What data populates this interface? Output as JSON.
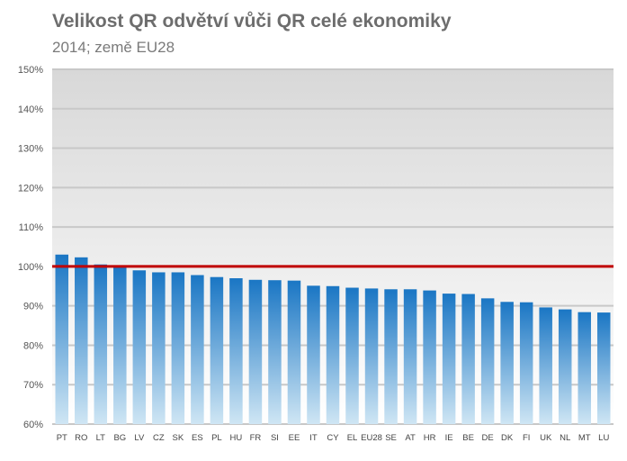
{
  "chart_data": {
    "type": "bar",
    "title": "Velikost QR odvětví vůči QR celé ekonomiky",
    "subtitle": "2014; země EU28",
    "xlabel": "",
    "ylabel": "",
    "categories": [
      "PT",
      "RO",
      "LT",
      "BG",
      "LV",
      "CZ",
      "SK",
      "ES",
      "PL",
      "HU",
      "FR",
      "SI",
      "EE",
      "IT",
      "CY",
      "EL",
      "EU28",
      "SE",
      "AT",
      "HR",
      "IE",
      "BE",
      "DE",
      "DK",
      "FI",
      "UK",
      "NL",
      "MT",
      "LU"
    ],
    "values": [
      103.0,
      102.3,
      100.5,
      100.3,
      99.0,
      98.5,
      98.5,
      97.8,
      97.3,
      97.0,
      96.6,
      96.5,
      96.4,
      95.1,
      95.0,
      94.6,
      94.4,
      94.2,
      94.2,
      93.9,
      93.1,
      93.0,
      91.9,
      91.0,
      90.9,
      89.6,
      89.1,
      88.4,
      88.3
    ],
    "ylim": [
      60,
      150
    ],
    "ytick_labels": [
      "60%",
      "70%",
      "80%",
      "90%",
      "100%",
      "110%",
      "120%",
      "130%",
      "140%",
      "150%"
    ],
    "reference_line": 100,
    "colors": {
      "bar_top": "#1a76c4",
      "bar_bottom": "#cfe6f4",
      "reference_line": "#c00000",
      "grid": "#c8c8c8",
      "plot_bg_top": "#d8d8d8",
      "plot_bg_bottom": "#ffffff"
    },
    "grid": true,
    "legend": "none"
  }
}
